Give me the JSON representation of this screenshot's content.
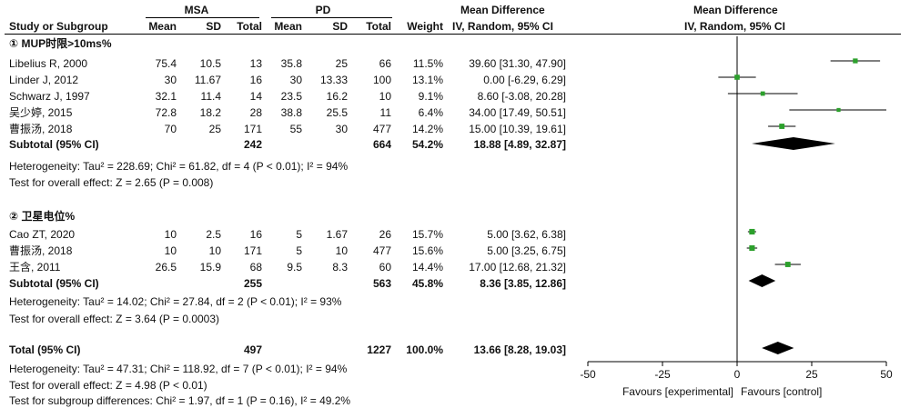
{
  "header": {
    "group1": "MSA",
    "group2": "PD",
    "effect_heading": "Mean Difference",
    "effect_heading_plot": "Mean Difference",
    "columns": {
      "study": "Study or Subgroup",
      "mean1": "Mean",
      "sd1": "SD",
      "total1": "Total",
      "mean2": "Mean",
      "sd2": "SD",
      "total2": "Total",
      "weight": "Weight",
      "ci": "IV, Random, 95% CI",
      "ci_plot": "IV, Random, 95% CI"
    }
  },
  "subgroups": [
    {
      "title": "① MUP时限>10ms%",
      "studies": [
        {
          "name": "Libelius R, 2000",
          "mean1": "75.4",
          "sd1": "10.5",
          "total1": "13",
          "mean2": "35.8",
          "sd2": "25",
          "total2": "66",
          "weight": "11.5%",
          "ci": "39.60 [31.30, 47.90]"
        },
        {
          "name": "Linder J, 2012",
          "mean1": "30",
          "sd1": "11.67",
          "total1": "16",
          "mean2": "30",
          "sd2": "13.33",
          "total2": "100",
          "weight": "13.1%",
          "ci": "0.00 [-6.29, 6.29]"
        },
        {
          "name": "Schwarz J, 1997",
          "mean1": "32.1",
          "sd1": "11.4",
          "total1": "14",
          "mean2": "23.5",
          "sd2": "16.2",
          "total2": "10",
          "weight": "9.1%",
          "ci": "8.60 [-3.08, 20.28]"
        },
        {
          "name": "吴少婷, 2015",
          "mean1": "72.8",
          "sd1": "18.2",
          "total1": "28",
          "mean2": "38.8",
          "sd2": "25.5",
          "total2": "11",
          "weight": "6.4%",
          "ci": "34.00 [17.49, 50.51]"
        },
        {
          "name": "曹振汤, 2018",
          "mean1": "70",
          "sd1": "25",
          "total1": "171",
          "mean2": "55",
          "sd2": "30",
          "total2": "477",
          "weight": "14.2%",
          "ci": "15.00 [10.39, 19.61]"
        }
      ],
      "subtotal": {
        "label": "Subtotal (95% CI)",
        "total1": "242",
        "total2": "664",
        "weight": "54.2%",
        "ci": "18.88 [4.89, 32.87]"
      },
      "heterogeneity": "Heterogeneity: Tau² = 228.69; Chi² = 61.82, df = 4 (P < 0.01); I² = 94%",
      "overall": "Test for overall effect: Z = 2.65 (P = 0.008)"
    },
    {
      "title": "② 卫星电位%",
      "studies": [
        {
          "name": "Cao ZT, 2020",
          "mean1": "10",
          "sd1": "2.5",
          "total1": "16",
          "mean2": "5",
          "sd2": "1.67",
          "total2": "26",
          "weight": "15.7%",
          "ci": "5.00 [3.62, 6.38]"
        },
        {
          "name": "曹振汤, 2018",
          "mean1": "10",
          "sd1": "10",
          "total1": "171",
          "mean2": "5",
          "sd2": "10",
          "total2": "477",
          "weight": "15.6%",
          "ci": "5.00 [3.25, 6.75]"
        },
        {
          "name": "王含, 2011",
          "mean1": "26.5",
          "sd1": "15.9",
          "total1": "68",
          "mean2": "9.5",
          "sd2": "8.3",
          "total2": "60",
          "weight": "14.4%",
          "ci": "17.00 [12.68, 21.32]"
        }
      ],
      "subtotal": {
        "label": "Subtotal (95% CI)",
        "total1": "255",
        "total2": "563",
        "weight": "45.8%",
        "ci": "8.36 [3.85, 12.86]"
      },
      "heterogeneity": "Heterogeneity: Tau² = 14.02; Chi² = 27.84, df = 2 (P < 0.01); I² = 93%",
      "overall": "Test for overall effect: Z = 3.64 (P = 0.0003)"
    }
  ],
  "total": {
    "label": "Total (95% CI)",
    "total1": "497",
    "total2": "1227",
    "weight": "100.0%",
    "ci": "13.66 [8.28, 19.03]",
    "heterogeneity": "Heterogeneity: Tau² = 47.31; Chi² = 118.92, df = 7 (P < 0.01); I² = 94%",
    "overall": "Test for overall effect: Z = 4.98 (P < 0.01)",
    "subgroup_test": "Test for subgroup differences: Chi² = 1.97, df = 1 (P = 0.16), I² = 49.2%"
  },
  "colors": {
    "square": "#2ca02c",
    "line": "#000000",
    "diamond": "#000000"
  },
  "chart_data": {
    "type": "forest",
    "xlim": [
      -50,
      50
    ],
    "xticks": [
      "-50",
      "-25",
      "0",
      "25",
      "50"
    ],
    "xticks_values": [
      -50,
      -25,
      0,
      25,
      50
    ],
    "favours_left": "Favours [experimental]",
    "favours_right": "Favours [control]",
    "studies": [
      {
        "name": "Libelius R, 2000",
        "estimate": 39.6,
        "lower": 31.3,
        "upper": 47.9,
        "weight": 11.5
      },
      {
        "name": "Linder J, 2012",
        "estimate": 0.0,
        "lower": -6.29,
        "upper": 6.29,
        "weight": 13.1
      },
      {
        "name": "Schwarz J, 1997",
        "estimate": 8.6,
        "lower": -3.08,
        "upper": 20.28,
        "weight": 9.1
      },
      {
        "name": "吴少婷, 2015",
        "estimate": 34.0,
        "lower": 17.49,
        "upper": 50.51,
        "weight": 6.4
      },
      {
        "name": "曹振汤, 2018",
        "estimate": 15.0,
        "lower": 10.39,
        "upper": 19.61,
        "weight": 14.2
      },
      {
        "name": "Cao ZT, 2020",
        "estimate": 5.0,
        "lower": 3.62,
        "upper": 6.38,
        "weight": 15.7
      },
      {
        "name": "曹振汤, 2018",
        "estimate": 5.0,
        "lower": 3.25,
        "upper": 6.75,
        "weight": 15.6
      },
      {
        "name": "王含, 2011",
        "estimate": 17.0,
        "lower": 12.68,
        "upper": 21.32,
        "weight": 14.4
      }
    ],
    "summaries": [
      {
        "name": "Subtotal ①",
        "estimate": 18.88,
        "lower": 4.89,
        "upper": 32.87
      },
      {
        "name": "Subtotal ②",
        "estimate": 8.36,
        "lower": 3.85,
        "upper": 12.86
      },
      {
        "name": "Total",
        "estimate": 13.66,
        "lower": 8.28,
        "upper": 19.03
      }
    ]
  }
}
